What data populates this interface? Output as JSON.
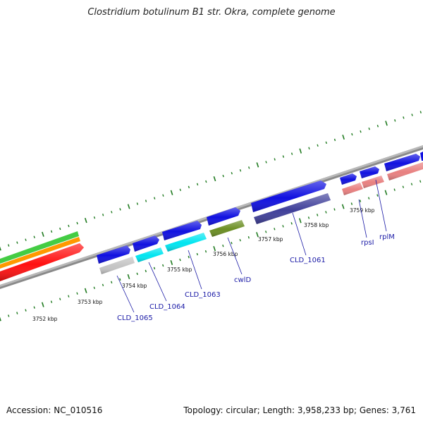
{
  "title": "Clostridium botulinum B1 str. Okra, complete genome",
  "accession_text": "Accession: NC_010516",
  "summary_text": "Topology: circular; Length: 3,958,233 bp; Genes: 3,761",
  "colors": {
    "backbone": "#8a8a8a",
    "ticks": "#1f7a1f",
    "forward_cds": "#1010e0",
    "reverse_cds": "#40409a",
    "cyan_cds": "#00e5f0",
    "grey_cds": "#c4c4c4",
    "olive_cds": "#6b8e23",
    "pink_cds": "#e88080",
    "red_band": "#ff1010",
    "orange_band": "#ff9900",
    "green_band": "#44cc44",
    "label": "#1a1aa6"
  },
  "kbp_labels": [
    "3752 kbp",
    "3753 kbp",
    "3754 kbp",
    "3755 kbp",
    "3756 kbp",
    "3757 kbp",
    "3758 kbp",
    "3759 kbp"
  ],
  "gene_labels": [
    "CLD_1065",
    "CLD_1064",
    "CLD_1063",
    "cwlD",
    "CLD_1061",
    "rpsI",
    "rplM"
  ]
}
